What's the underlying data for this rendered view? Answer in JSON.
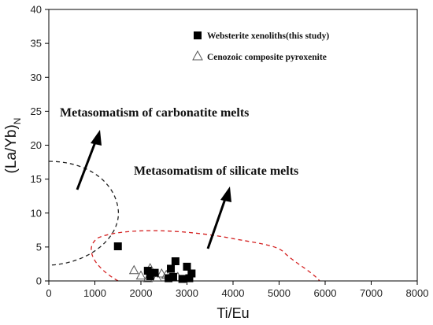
{
  "chart_data": {
    "type": "scatter",
    "xlabel": "Ti/Eu",
    "ylabel_main": "(La/Yb)",
    "ylabel_sub": "N",
    "xlim": [
      0,
      8000
    ],
    "ylim": [
      0,
      40
    ],
    "xticks": [
      0,
      1000,
      2000,
      3000,
      4000,
      5000,
      6000,
      7000,
      8000
    ],
    "yticks": [
      0,
      5,
      10,
      15,
      20,
      25,
      30,
      35,
      40
    ],
    "grid": false,
    "legend_position": "top-right",
    "series": [
      {
        "name": "Websterite xenoliths(this study)",
        "marker": "square-filled",
        "color": "#000000",
        "points": [
          [
            1500,
            5.1
          ],
          [
            2150,
            1.5
          ],
          [
            2300,
            1.2
          ],
          [
            2200,
            0.7
          ],
          [
            2600,
            0.4
          ],
          [
            2700,
            0.6
          ],
          [
            2650,
            1.8
          ],
          [
            2750,
            2.9
          ],
          [
            3000,
            2.1
          ],
          [
            3100,
            1.1
          ],
          [
            3050,
            0.4
          ],
          [
            2900,
            0.3
          ]
        ]
      },
      {
        "name": "Cenozoic composite pyroxenite",
        "marker": "triangle-open",
        "color": "#555555",
        "points": [
          [
            1850,
            1.6
          ],
          [
            2200,
            1.9
          ],
          [
            2000,
            0.8
          ],
          [
            2350,
            0.5
          ],
          [
            2450,
            1.1
          ],
          [
            2550,
            0.9
          ],
          [
            2150,
            0.4
          ],
          [
            2800,
            0.6
          ]
        ]
      }
    ],
    "annotations": [
      {
        "text": "Metasomatism of carbonatite melts"
      },
      {
        "text": "Metasomatism of silicate melts"
      }
    ],
    "field_colors": {
      "carbonatite": "#222222",
      "silicate": "#d42020"
    }
  }
}
